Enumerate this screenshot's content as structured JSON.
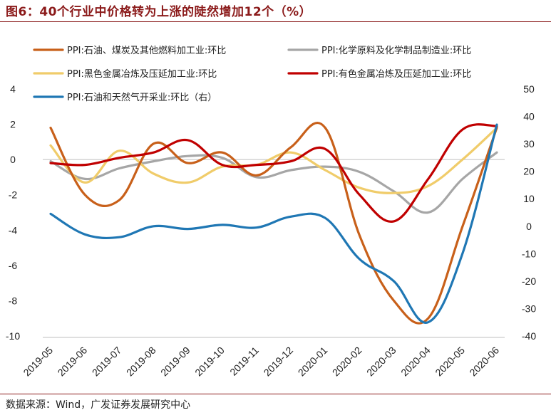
{
  "header": {
    "title": "图6：40个行业中价格转为上涨的陡然增加12个（%）"
  },
  "footer": {
    "source": "数据来源：Wind，广发证券发展研究中心"
  },
  "chart_data": {
    "type": "line",
    "title": "图6：40个行业中价格转为上涨的陡然增加12个（%）",
    "categories": [
      "2019-05",
      "2019-06",
      "2019-07",
      "2019-08",
      "2019-09",
      "2019-10",
      "2019-11",
      "2019-12",
      "2020-01",
      "2020-02",
      "2020-03",
      "2020-04",
      "2020-05",
      "2020-06"
    ],
    "y_left": {
      "min": -10,
      "max": 4,
      "ticks": [
        -10,
        -8,
        -6,
        -4,
        -2,
        0,
        2,
        4
      ]
    },
    "y_right": {
      "min": -40,
      "max": 50,
      "ticks": [
        -40,
        -30,
        -20,
        -10,
        0,
        10,
        20,
        30,
        40,
        50
      ]
    },
    "legend_placement": "top",
    "series": [
      {
        "name": "PPI:石油、煤炭及其他燃料加工业:环比",
        "axis": "left",
        "color": "#c8601a",
        "values": [
          1.8,
          -2.0,
          -2.3,
          0.9,
          -0.2,
          0.4,
          -0.9,
          0.7,
          1.8,
          -4.3,
          -8.0,
          -9.0,
          -3.8,
          1.8
        ]
      },
      {
        "name": "PPI:化学原料及化学制品制造业:环比",
        "axis": "left",
        "color": "#a6a6a6",
        "values": [
          -0.1,
          -1.1,
          -0.5,
          -0.1,
          0.2,
          0.1,
          -1.0,
          -0.6,
          -0.4,
          -0.7,
          -1.8,
          -3.0,
          -1.1,
          0.4
        ]
      },
      {
        "name": "PPI:黑色金属冶炼及压延加工业:环比",
        "axis": "left",
        "color": "#f0cc6a",
        "values": [
          0.8,
          -1.3,
          0.5,
          -0.8,
          -1.3,
          -0.4,
          -0.3,
          0.4,
          -0.6,
          -1.6,
          -1.9,
          -1.5,
          0.0,
          1.8
        ]
      },
      {
        "name": "PPI:有色金属冶炼及压延加工业:环比",
        "axis": "left",
        "color": "#c00000",
        "values": [
          -0.2,
          -0.3,
          0.1,
          0.4,
          1.1,
          -0.3,
          -0.3,
          -0.1,
          0.6,
          -2.0,
          -3.5,
          -1.1,
          1.7,
          1.9
        ]
      },
      {
        "name": "PPI:石油和天然气开采业:环比（右）",
        "axis": "right",
        "color": "#1f77b4",
        "values": [
          4.5,
          -3.0,
          -4.0,
          0.0,
          -1.0,
          0.5,
          -0.5,
          3.5,
          3.0,
          -12.0,
          -20.0,
          -35.0,
          -10.0,
          37.0
        ]
      }
    ]
  }
}
